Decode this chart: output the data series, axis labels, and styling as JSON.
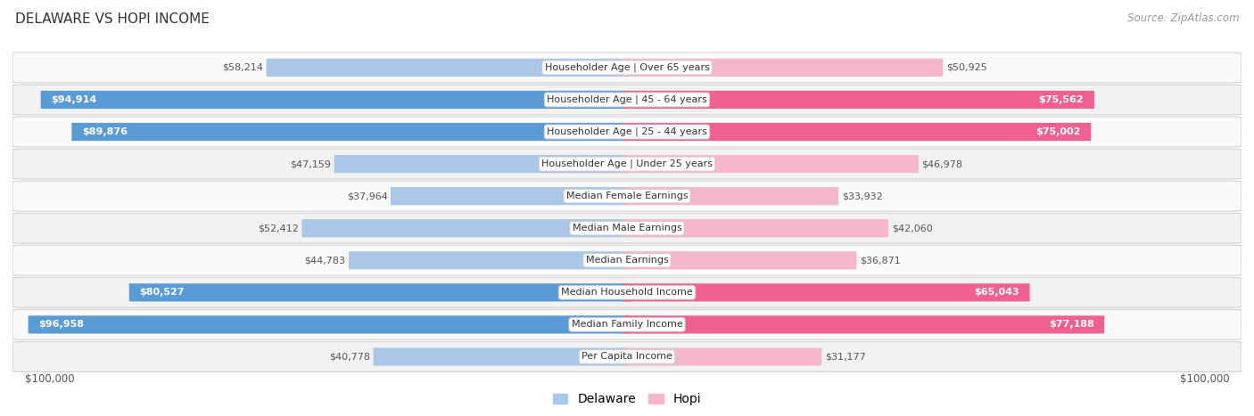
{
  "title": "DELAWARE VS HOPI INCOME",
  "source": "Source: ZipAtlas.com",
  "categories": [
    "Per Capita Income",
    "Median Family Income",
    "Median Household Income",
    "Median Earnings",
    "Median Male Earnings",
    "Median Female Earnings",
    "Householder Age | Under 25 years",
    "Householder Age | 25 - 44 years",
    "Householder Age | 45 - 64 years",
    "Householder Age | Over 65 years"
  ],
  "delaware_values": [
    40778,
    96958,
    80527,
    44783,
    52412,
    37964,
    47159,
    89876,
    94914,
    58214
  ],
  "hopi_values": [
    31177,
    77188,
    65043,
    36871,
    42060,
    33932,
    46978,
    75002,
    75562,
    50925
  ],
  "delaware_labels": [
    "$40,778",
    "$96,958",
    "$80,527",
    "$44,783",
    "$52,412",
    "$37,964",
    "$47,159",
    "$89,876",
    "$94,914",
    "$58,214"
  ],
  "hopi_labels": [
    "$31,177",
    "$77,188",
    "$65,043",
    "$36,871",
    "$42,060",
    "$33,932",
    "$46,978",
    "$75,002",
    "$75,562",
    "$50,925"
  ],
  "delaware_color_light": "#aac7e8",
  "delaware_color_dark": "#5b9bd5",
  "hopi_color_light": "#f5b8cb",
  "hopi_color_dark": "#f06090",
  "max_value": 100000,
  "x_label_left": "$100,000",
  "x_label_right": "$100,000",
  "background_color": "#ffffff",
  "row_bg_odd": "#f2f2f2",
  "row_bg_even": "#fafafa",
  "legend_delaware": "Delaware",
  "legend_hopi": "Hopi",
  "dark_threshold_del": 75000,
  "dark_threshold_hopi": 60000
}
